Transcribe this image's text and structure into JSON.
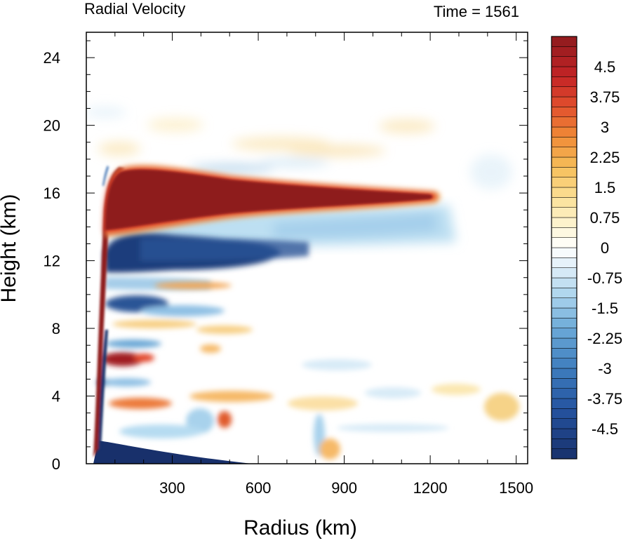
{
  "chart_data": {
    "type": "heatmap",
    "title_left": "Radial Velocity",
    "title_right": "Time = 1561",
    "xlabel": "Radius (km)",
    "ylabel": "Height (km)",
    "xlim": [
      0,
      1540
    ],
    "ylim": [
      0,
      25.5
    ],
    "x_ticks": [
      300,
      600,
      900,
      1200,
      1500
    ],
    "x_tick_labels": [
      "300",
      "600",
      "900",
      "1200",
      "1500"
    ],
    "y_ticks": [
      0,
      4,
      8,
      12,
      16,
      20,
      24
    ],
    "y_tick_labels": [
      "0",
      "4",
      "8",
      "12",
      "16",
      "20",
      "24"
    ],
    "grid": false,
    "colorbar": {
      "levels": [
        -5.25,
        -5.0,
        -4.75,
        -4.5,
        -4.25,
        -4.0,
        -3.75,
        -3.5,
        -3.25,
        -3.0,
        -2.75,
        -2.5,
        -2.25,
        -2.0,
        -1.75,
        -1.5,
        -1.25,
        -1.0,
        -0.75,
        -0.5,
        -0.25,
        0,
        0.25,
        0.5,
        0.75,
        1.0,
        1.25,
        1.5,
        1.75,
        2.0,
        2.25,
        2.5,
        2.75,
        3.0,
        3.25,
        3.5,
        3.75,
        4.0,
        4.25,
        4.5,
        4.75,
        5.0,
        5.25
      ],
      "tick_values": [
        4.5,
        3.75,
        3,
        2.25,
        1.5,
        0.75,
        0,
        -0.75,
        -1.5,
        -2.25,
        -3,
        -3.75,
        -4.5
      ],
      "tick_labels": [
        "4.5",
        "3.75",
        "3",
        "2.25",
        "1.5",
        "0.75",
        "0",
        "-0.75",
        "-1.5",
        "-2.25",
        "-3",
        "-3.75",
        "-4.5"
      ]
    },
    "colors": {
      "strong_positive": "#8e1b1e",
      "positive": "#e2452b",
      "weak_positive": "#f5c35e",
      "zero": "#ffffff",
      "weak_negative": "#a8d2ec",
      "negative": "#3a6fb0",
      "strong_negative": "#18306b"
    },
    "features": [
      {
        "name": "upper-level outflow",
        "sign": "positive",
        "radius_range_km": [
          40,
          1240
        ],
        "height_range_km": [
          13.5,
          17.5
        ]
      },
      {
        "name": "mid-upper inflow",
        "sign": "negative",
        "radius_range_km": [
          50,
          900
        ],
        "height_range_km": [
          11,
          13.5
        ]
      },
      {
        "name": "low-level inflow",
        "sign": "negative",
        "radius_range_km": [
          20,
          560
        ],
        "height_range_km": [
          0,
          1.5
        ]
      },
      {
        "name": "mid-level outflow",
        "sign": "positive",
        "radius_range_km": [
          60,
          220
        ],
        "height_range_km": [
          5.5,
          6.8
        ]
      }
    ]
  }
}
